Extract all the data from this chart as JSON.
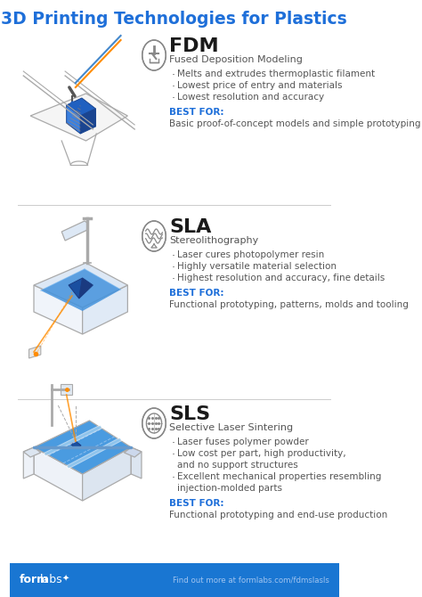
{
  "title": "3D Printing Technologies for Plastics",
  "title_color": "#1E6FD9",
  "bg_color": "#FFFFFF",
  "footer_bg": "#1976D2",
  "footer_text_right": "Find out more at formlabs.com/fdmslasls",
  "sections": [
    {
      "name": "FDM",
      "full_name": "Fused Deposition Modeling",
      "bullets": [
        "Melts and extrudes thermoplastic filament",
        "Lowest price of entry and materials",
        "Lowest resolution and accuracy"
      ],
      "best_for_label": "BEST FOR:",
      "best_for_text": "Basic proof-of-concept models and simple prototyping"
    },
    {
      "name": "SLA",
      "full_name": "Stereolithography",
      "bullets": [
        "Laser cures photopolymer resin",
        "Highly versatile material selection",
        "Highest resolution and accuracy, fine details"
      ],
      "best_for_label": "BEST FOR:",
      "best_for_text": "Functional prototyping, patterns, molds and tooling"
    },
    {
      "name": "SLS",
      "full_name": "Selective Laser Sintering",
      "bullets": [
        "Laser fuses polymer powder",
        "Low cost per part, high productivity,\nand no support structures",
        "Excellent mechanical properties resembling\ninjection-molded parts"
      ],
      "best_for_label": "BEST FOR:",
      "best_for_text": "Functional prototyping and end-use production"
    }
  ],
  "accent_color": "#1E6FD9",
  "best_for_color": "#1E6FD9",
  "bullet_color": "#555555",
  "name_color": "#1a1a1a",
  "subname_color": "#555555",
  "divider_color": "#CCCCCC",
  "icon_color": "#888888",
  "line_color": "#AAAAAA",
  "blue_dark": "#1a4fa0",
  "blue_mid": "#2471d4",
  "blue_light": "#5baee8",
  "blue_vlight": "#c5dff5",
  "blue_fill": "#4ba3e3"
}
